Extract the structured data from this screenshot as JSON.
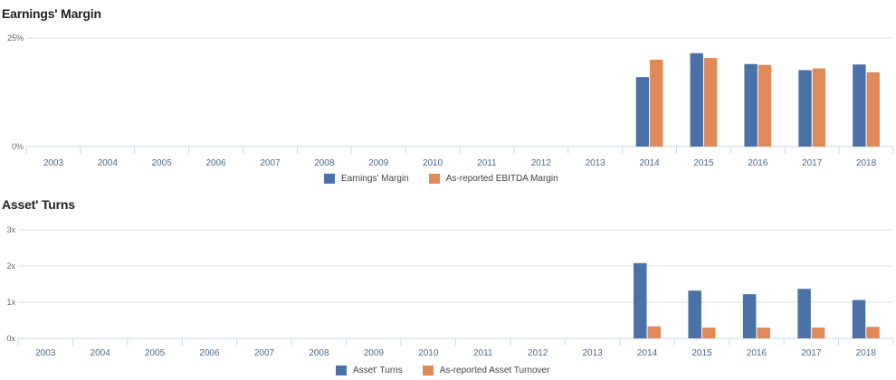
{
  "colors": {
    "primary": "#4a72a8",
    "secondary": "#e08a5a",
    "grid": "#d8dde4",
    "axis": "#ccd6eb"
  },
  "chart_data": [
    {
      "type": "bar",
      "title": "Earnings' Margin",
      "categories": [
        "2003",
        "2004",
        "2005",
        "2006",
        "2007",
        "2008",
        "2009",
        "2010",
        "2011",
        "2012",
        "2013",
        "2014",
        "2015",
        "2016",
        "2017",
        "2018"
      ],
      "ylim": [
        0,
        25
      ],
      "yticks": [
        "0%",
        "25%"
      ],
      "grid": true,
      "legend_position": "bottom",
      "series": [
        {
          "name": "Earnings' Margin",
          "values": [
            null,
            null,
            null,
            null,
            null,
            null,
            null,
            null,
            null,
            null,
            null,
            16.0,
            21.5,
            19.0,
            17.6,
            18.9
          ]
        },
        {
          "name": "As-reported EBITDA Margin",
          "values": [
            null,
            null,
            null,
            null,
            null,
            null,
            null,
            null,
            null,
            null,
            null,
            20.0,
            20.4,
            18.8,
            18.0,
            17.1
          ]
        }
      ]
    },
    {
      "type": "bar",
      "title": "Asset' Turns",
      "categories": [
        "2003",
        "2004",
        "2005",
        "2006",
        "2007",
        "2008",
        "2009",
        "2010",
        "2011",
        "2012",
        "2013",
        "2014",
        "2015",
        "2016",
        "2017",
        "2018"
      ],
      "ylim": [
        0,
        3
      ],
      "yticks": [
        "0x",
        "1x",
        "2x",
        "3x"
      ],
      "grid": true,
      "legend_position": "bottom",
      "series": [
        {
          "name": "Asset' Turns",
          "values": [
            null,
            null,
            null,
            null,
            null,
            null,
            null,
            null,
            null,
            null,
            null,
            2.08,
            1.32,
            1.22,
            1.37,
            1.06
          ]
        },
        {
          "name": "As-reported Asset Turnover",
          "values": [
            null,
            null,
            null,
            null,
            null,
            null,
            null,
            null,
            null,
            null,
            null,
            0.33,
            0.3,
            0.3,
            0.3,
            0.32
          ]
        }
      ]
    }
  ]
}
